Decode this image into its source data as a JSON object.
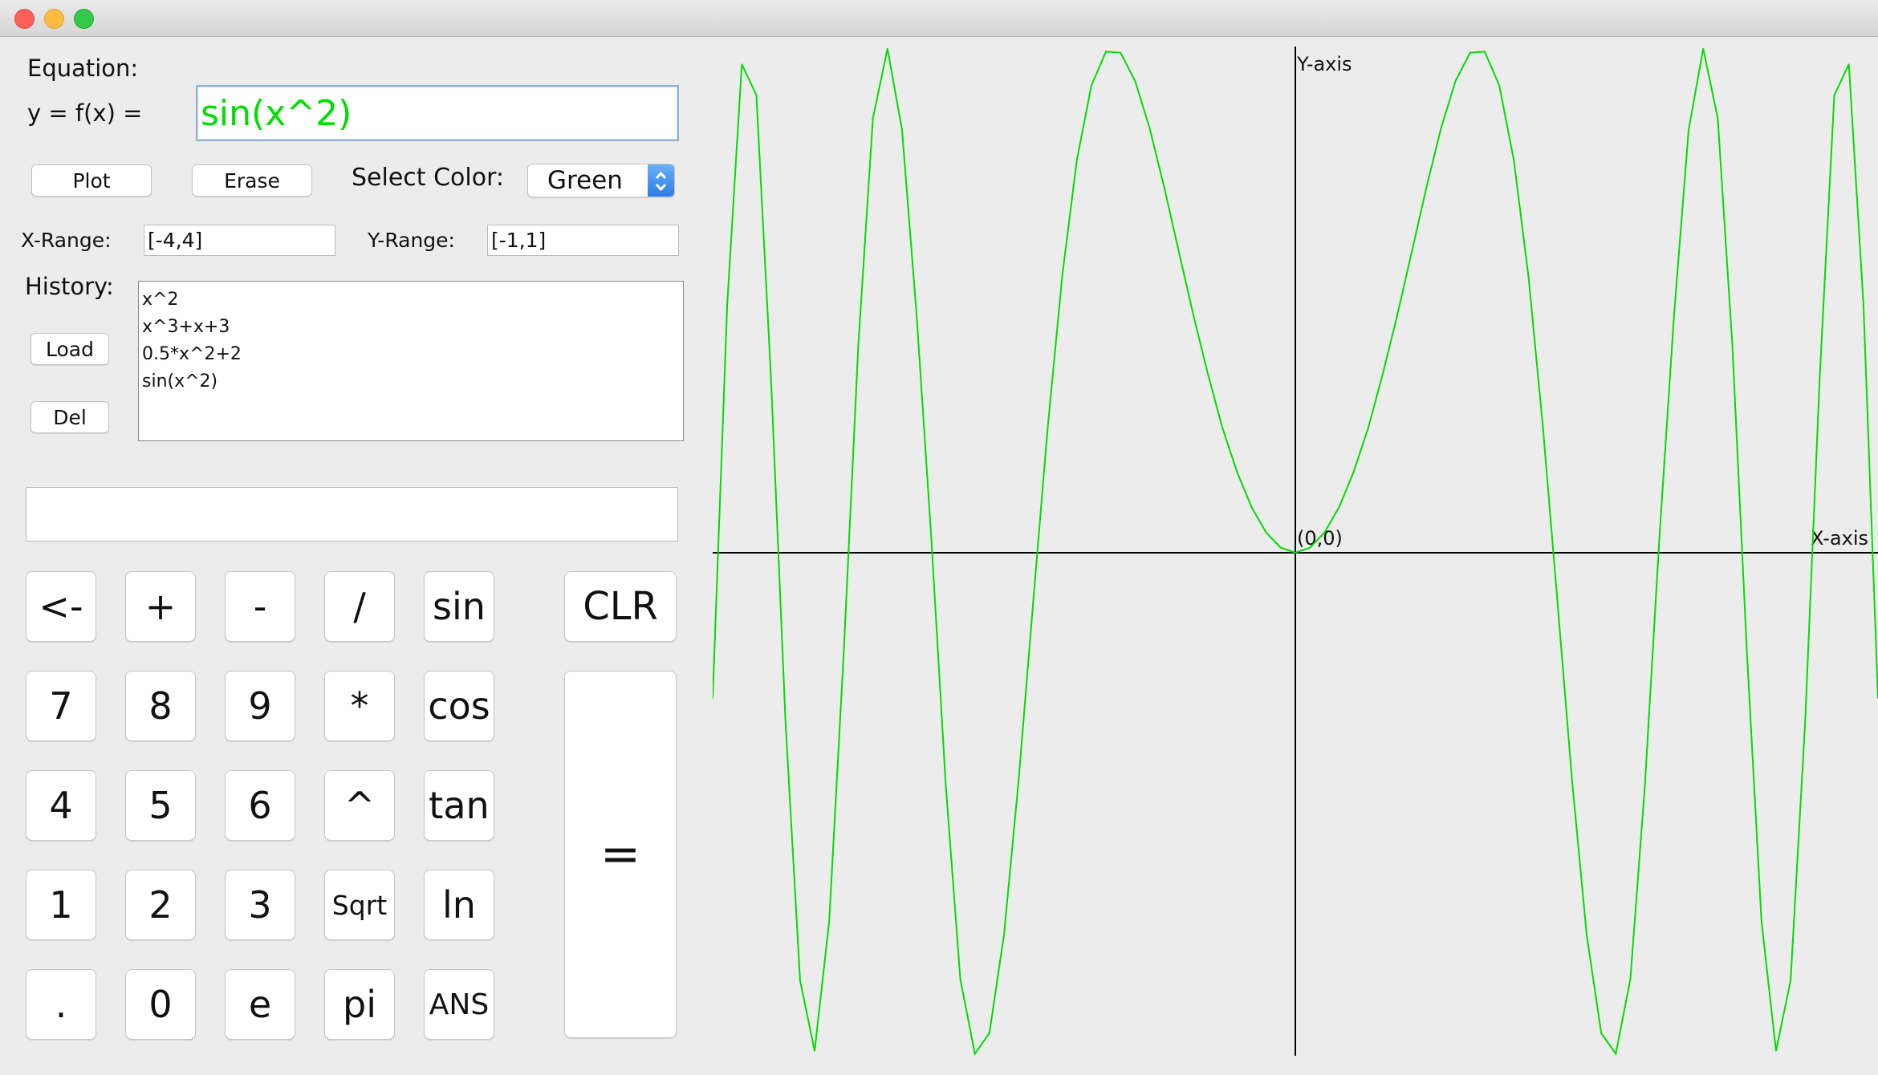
{
  "window": {
    "traffic_lights": [
      "close",
      "minimize",
      "zoom"
    ]
  },
  "equation": {
    "label": "Equation:",
    "prefix": "y = f(x) =",
    "value": "sin(x^2)",
    "color": "#00dd00"
  },
  "buttons": {
    "plot": "Plot",
    "erase": "Erase",
    "load": "Load",
    "del": "Del"
  },
  "color_select": {
    "label": "Select Color:",
    "value": "Green"
  },
  "ranges": {
    "x_label": "X-Range:",
    "x_value": "[-4,4]",
    "y_label": "Y-Range:",
    "y_value": "[-1,1]"
  },
  "history": {
    "label": "History:",
    "items": [
      "x^2",
      "x^3+x+3",
      "0.5*x^2+2",
      "sin(x^2)"
    ]
  },
  "display": {
    "value": ""
  },
  "keypad": {
    "rows": [
      [
        "<-",
        "+",
        "-",
        "/",
        "sin"
      ],
      [
        "7",
        "8",
        "9",
        "*",
        "cos"
      ],
      [
        "4",
        "5",
        "6",
        "^",
        "tan"
      ],
      [
        "1",
        "2",
        "3",
        "Sqrt",
        "ln"
      ],
      [
        ".",
        "0",
        "e",
        "pi",
        "ANS"
      ]
    ],
    "clear": "CLR",
    "equals": "="
  },
  "chart_data": {
    "type": "line",
    "function": "sin(x^2)",
    "xlim": [
      -4,
      4
    ],
    "ylim": [
      -1,
      1
    ],
    "x_axis_label": "X-axis",
    "y_axis_label": "Y-axis",
    "origin_label": "(0,0)",
    "grid": false,
    "series": [
      {
        "color": "#00dd00",
        "x": [
          -4.0,
          -3.9,
          -3.8,
          -3.7,
          -3.6,
          -3.5,
          -3.4,
          -3.3,
          -3.2,
          -3.1,
          -3.0,
          -2.9,
          -2.8,
          -2.7,
          -2.6,
          -2.5,
          -2.4,
          -2.3,
          -2.2,
          -2.1,
          -2.0,
          -1.9,
          -1.8,
          -1.7,
          -1.6,
          -1.5,
          -1.4,
          -1.3,
          -1.2,
          -1.1,
          -1.0,
          -0.9,
          -0.8,
          -0.7,
          -0.6,
          -0.5,
          -0.4,
          -0.3,
          -0.2,
          -0.1,
          0.0,
          0.1,
          0.2,
          0.3,
          0.4,
          0.5,
          0.6,
          0.7,
          0.8,
          0.9,
          1.0,
          1.1,
          1.2,
          1.3,
          1.4,
          1.5,
          1.6,
          1.7,
          1.8,
          1.9,
          2.0,
          2.1,
          2.2,
          2.3,
          2.4,
          2.5,
          2.6,
          2.7,
          2.8,
          2.9,
          3.0,
          3.1,
          3.2,
          3.3,
          3.4,
          3.5,
          3.6,
          3.7,
          3.8,
          3.9,
          4.0
        ],
        "y": [
          -0.288,
          0.493,
          0.968,
          0.907,
          0.348,
          -0.335,
          -0.848,
          -0.987,
          -0.73,
          -0.197,
          0.412,
          0.861,
          0.999,
          0.838,
          0.471,
          0.033,
          -0.46,
          -0.845,
          -0.993,
          -0.952,
          -0.757,
          -0.452,
          -0.099,
          0.248,
          0.549,
          0.778,
          0.926,
          0.993,
          0.991,
          0.935,
          0.841,
          0.724,
          0.597,
          0.471,
          0.354,
          0.247,
          0.16,
          0.09,
          0.04,
          0.01,
          0.0,
          0.01,
          0.04,
          0.09,
          0.16,
          0.247,
          0.354,
          0.471,
          0.597,
          0.724,
          0.841,
          0.935,
          0.991,
          0.993,
          0.926,
          0.778,
          0.549,
          0.248,
          -0.099,
          -0.452,
          -0.757,
          -0.952,
          -0.993,
          -0.845,
          -0.46,
          0.033,
          0.471,
          0.838,
          0.999,
          0.861,
          0.412,
          -0.197,
          -0.73,
          -0.987,
          -0.848,
          -0.335,
          0.348,
          0.907,
          0.968,
          0.493,
          -0.288
        ]
      }
    ]
  }
}
